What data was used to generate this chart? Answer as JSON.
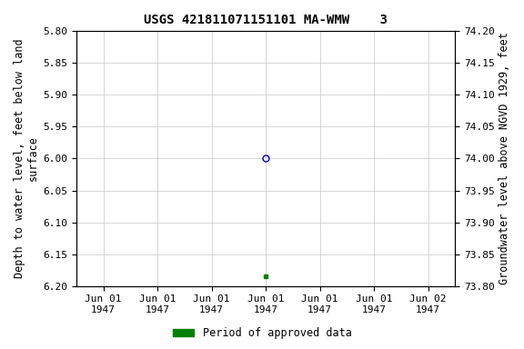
{
  "title": "USGS 421811071151101 MA-WMW    3",
  "ylabel_left": "Depth to water level, feet below land\nsurface",
  "ylabel_right": "Groundwater level above NGVD 1929, feet",
  "ylim_left": [
    5.8,
    6.2
  ],
  "ylim_right": [
    73.8,
    74.2
  ],
  "y_ticks_left": [
    5.8,
    5.85,
    5.9,
    5.95,
    6.0,
    6.05,
    6.1,
    6.15,
    6.2
  ],
  "y_ticks_right": [
    73.8,
    73.85,
    73.9,
    73.95,
    74.0,
    74.05,
    74.1,
    74.15,
    74.2
  ],
  "data_point_open": {
    "depth": 6.0,
    "color": "#0000bb",
    "marker": "o"
  },
  "data_point_filled": {
    "depth": 6.185,
    "color": "#008000",
    "marker": "s"
  },
  "background_color": "#ffffff",
  "grid_color": "#c8c8c8",
  "font_family": "monospace",
  "title_fontsize": 10,
  "axis_label_fontsize": 8.5,
  "tick_fontsize": 8,
  "legend_label": "Period of approved data",
  "legend_color": "#008000",
  "tick_labels": [
    "Jun 01\n1947",
    "Jun 01\n1947",
    "Jun 01\n1947",
    "Jun 01\n1947",
    "Jun 01\n1947",
    "Jun 01\n1947",
    "Jun 02\n1947"
  ],
  "data_tick_index": 3,
  "num_ticks": 7
}
